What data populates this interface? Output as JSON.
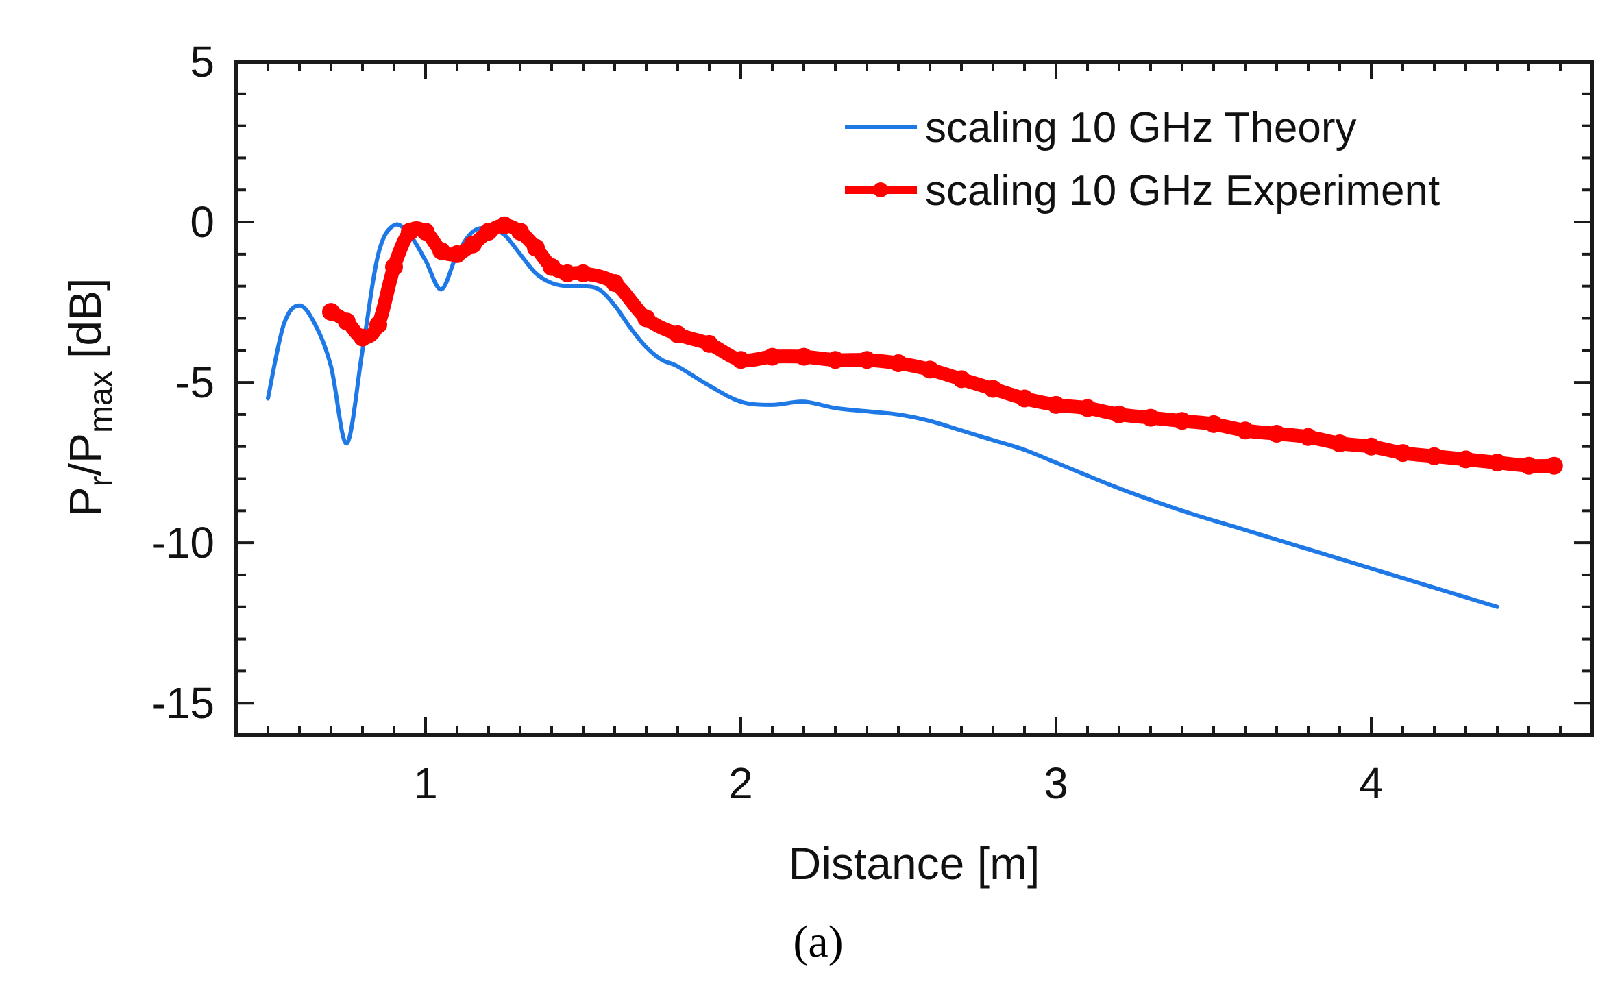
{
  "chart_data": {
    "type": "line",
    "title": "",
    "xlabel": "Distance [m]",
    "ylabel_main": "P",
    "ylabel_sub1": "r",
    "ylabel_mid": "/P",
    "ylabel_sub2": "max",
    "ylabel_units": " [dB]",
    "xlim": [
      0.4,
      4.7
    ],
    "ylim": [
      -16,
      5
    ],
    "x_ticks": [
      1,
      2,
      3,
      4
    ],
    "x_tick_labels": [
      "1",
      "2",
      "3",
      "4"
    ],
    "y_ticks": [
      5,
      0,
      -5,
      -10,
      -15
    ],
    "y_tick_labels": [
      "5",
      "0",
      "-5",
      "-10",
      "-15"
    ],
    "grid": false,
    "legend_position": "top-right",
    "caption": "(a)",
    "caption_bold": "a",
    "series": [
      {
        "name": "scaling 10 GHz Theory",
        "color": "#1e78e6",
        "marker": "none",
        "x": [
          0.5,
          0.55,
          0.6,
          0.65,
          0.7,
          0.75,
          0.8,
          0.85,
          0.9,
          0.95,
          1.0,
          1.05,
          1.1,
          1.15,
          1.2,
          1.25,
          1.3,
          1.35,
          1.4,
          1.45,
          1.5,
          1.55,
          1.6,
          1.65,
          1.7,
          1.75,
          1.8,
          1.9,
          2.0,
          2.1,
          2.2,
          2.3,
          2.4,
          2.5,
          2.6,
          2.7,
          2.8,
          2.9,
          3.0,
          3.2,
          3.4,
          3.6,
          3.8,
          4.0,
          4.2,
          4.4
        ],
        "y": [
          -5.5,
          -3.2,
          -2.6,
          -3.2,
          -4.5,
          -6.9,
          -4.0,
          -1.0,
          -0.1,
          -0.4,
          -1.2,
          -2.1,
          -1.0,
          -0.3,
          -0.2,
          -0.4,
          -1.0,
          -1.6,
          -1.9,
          -2.0,
          -2.0,
          -2.1,
          -2.6,
          -3.3,
          -3.9,
          -4.3,
          -4.5,
          -5.1,
          -5.6,
          -5.7,
          -5.6,
          -5.8,
          -5.9,
          -6.0,
          -6.2,
          -6.5,
          -6.8,
          -7.1,
          -7.5,
          -8.3,
          -9.0,
          -9.6,
          -10.2,
          -10.8,
          -11.4,
          -12.0
        ]
      },
      {
        "name": "scaling 10 GHz Experiment",
        "color": "#ff0000",
        "marker": "circle",
        "x": [
          0.7,
          0.75,
          0.8,
          0.85,
          0.9,
          0.95,
          1.0,
          1.05,
          1.1,
          1.15,
          1.2,
          1.25,
          1.3,
          1.35,
          1.4,
          1.45,
          1.5,
          1.6,
          1.7,
          1.8,
          1.9,
          2.0,
          2.1,
          2.2,
          2.3,
          2.4,
          2.5,
          2.6,
          2.7,
          2.8,
          2.9,
          3.0,
          3.1,
          3.2,
          3.3,
          3.4,
          3.5,
          3.6,
          3.7,
          3.8,
          3.9,
          4.0,
          4.1,
          4.2,
          4.3,
          4.4,
          4.5,
          4.58
        ],
        "y": [
          -2.8,
          -3.1,
          -3.6,
          -3.2,
          -1.4,
          -0.3,
          -0.3,
          -0.9,
          -1.0,
          -0.7,
          -0.3,
          -0.1,
          -0.3,
          -0.8,
          -1.4,
          -1.6,
          -1.6,
          -1.9,
          -3.0,
          -3.5,
          -3.8,
          -4.3,
          -4.2,
          -4.2,
          -4.3,
          -4.3,
          -4.4,
          -4.6,
          -4.9,
          -5.2,
          -5.5,
          -5.7,
          -5.8,
          -6.0,
          -6.1,
          -6.2,
          -6.3,
          -6.5,
          -6.6,
          -6.7,
          -6.9,
          -7.0,
          -7.2,
          -7.3,
          -7.4,
          -7.5,
          -7.6,
          -7.6
        ]
      }
    ]
  }
}
